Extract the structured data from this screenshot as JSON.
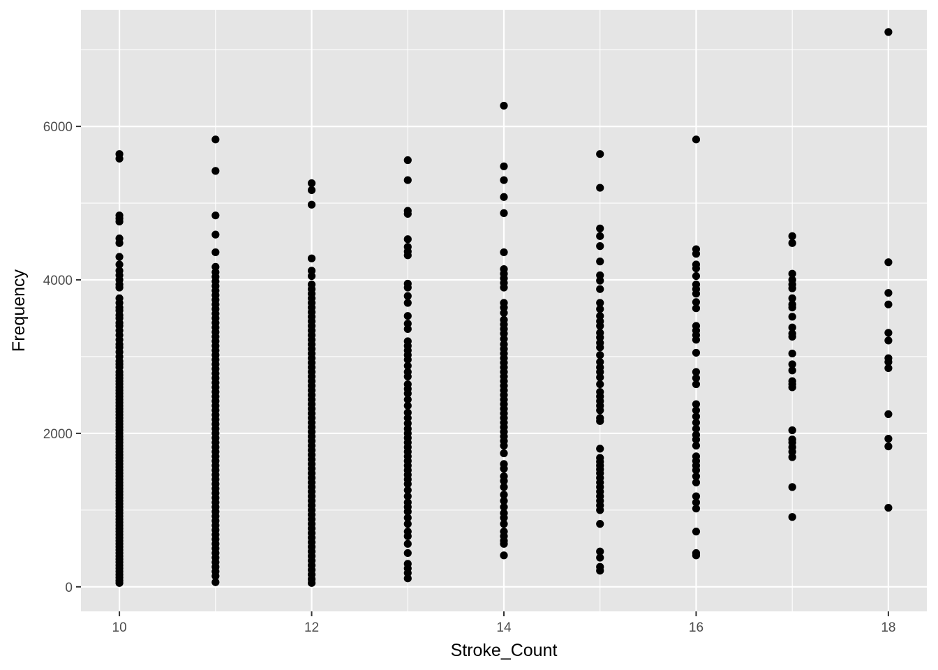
{
  "chart_data": {
    "type": "scatter",
    "xlabel": "Stroke_Count",
    "ylabel": "Frequency",
    "xlim": [
      9.6,
      18.4
    ],
    "ylim": [
      -320,
      7520
    ],
    "x_ticks": [
      10,
      12,
      14,
      16,
      18
    ],
    "x_tick_labels": [
      "10",
      "12",
      "14",
      "16",
      "18"
    ],
    "y_ticks": [
      0,
      2000,
      4000,
      6000
    ],
    "y_tick_labels": [
      "0",
      "2000",
      "4000",
      "6000"
    ],
    "grid": true,
    "legend": "none",
    "colors": {
      "panel": "#e5e5e5",
      "grid_major": "#ffffff",
      "point": "#000000"
    },
    "series": [
      {
        "x": 10,
        "y": [
          5640,
          5580,
          4840,
          4800,
          4760,
          4540,
          4480,
          4300,
          4200,
          4120,
          4060,
          4000,
          3940,
          3900,
          3760,
          3700,
          3640,
          3600,
          3540,
          3500,
          3440,
          3400,
          3340,
          3280,
          3220,
          3160,
          3120,
          3060,
          3000,
          2940,
          2900,
          2860,
          2800,
          2760,
          2720,
          2680,
          2640,
          2600,
          2560,
          2520,
          2480,
          2440,
          2400,
          2360,
          2320,
          2280,
          2240,
          2200,
          2160,
          2120,
          2080,
          2040,
          2000,
          1960,
          1920,
          1880,
          1840,
          1800,
          1760,
          1720,
          1680,
          1640,
          1600,
          1560,
          1520,
          1480,
          1440,
          1400,
          1360,
          1320,
          1280,
          1240,
          1200,
          1160,
          1120,
          1080,
          1040,
          1000,
          960,
          920,
          880,
          840,
          800,
          760,
          720,
          680,
          640,
          600,
          560,
          520,
          480,
          440,
          400,
          360,
          320,
          280,
          240,
          200,
          160,
          120,
          80,
          50
        ]
      },
      {
        "x": 11,
        "y": [
          5830,
          5420,
          4840,
          4590,
          4360,
          4170,
          4100,
          4040,
          3980,
          3920,
          3860,
          3800,
          3740,
          3680,
          3620,
          3560,
          3500,
          3440,
          3380,
          3320,
          3260,
          3200,
          3140,
          3080,
          3020,
          2960,
          2900,
          2840,
          2780,
          2720,
          2660,
          2600,
          2540,
          2480,
          2420,
          2360,
          2300,
          2240,
          2180,
          2120,
          2060,
          2000,
          1940,
          1880,
          1820,
          1760,
          1700,
          1640,
          1580,
          1520,
          1460,
          1400,
          1340,
          1280,
          1220,
          1160,
          1100,
          1040,
          980,
          920,
          860,
          800,
          740,
          680,
          620,
          560,
          500,
          440,
          380,
          320,
          260,
          200,
          140,
          60
        ]
      },
      {
        "x": 12,
        "y": [
          5260,
          5170,
          4980,
          4280,
          4120,
          4050,
          3940,
          3880,
          3820,
          3760,
          3700,
          3640,
          3580,
          3520,
          3460,
          3400,
          3340,
          3280,
          3220,
          3160,
          3100,
          3040,
          2980,
          2920,
          2860,
          2800,
          2740,
          2680,
          2620,
          2560,
          2500,
          2440,
          2380,
          2320,
          2260,
          2200,
          2140,
          2080,
          2020,
          1960,
          1900,
          1840,
          1780,
          1720,
          1660,
          1600,
          1540,
          1480,
          1420,
          1360,
          1300,
          1240,
          1180,
          1120,
          1060,
          1000,
          940,
          880,
          820,
          760,
          700,
          640,
          580,
          520,
          460,
          400,
          340,
          280,
          220,
          160,
          100,
          50
        ]
      },
      {
        "x": 13,
        "y": [
          5560,
          5300,
          4900,
          4860,
          4530,
          4430,
          4370,
          4320,
          3950,
          3900,
          3790,
          3700,
          3530,
          3430,
          3360,
          3200,
          3140,
          3080,
          3020,
          2960,
          2880,
          2800,
          2740,
          2640,
          2580,
          2520,
          2440,
          2360,
          2270,
          2200,
          2130,
          2060,
          2000,
          1940,
          1880,
          1820,
          1760,
          1700,
          1640,
          1580,
          1520,
          1460,
          1400,
          1340,
          1260,
          1180,
          1100,
          1040,
          980,
          900,
          820,
          720,
          660,
          560,
          440,
          300,
          240,
          180,
          110
        ]
      },
      {
        "x": 14,
        "y": [
          6270,
          5480,
          5300,
          5080,
          4870,
          4360,
          4140,
          4080,
          4020,
          3960,
          3900,
          3700,
          3640,
          3570,
          3480,
          3420,
          3360,
          3300,
          3230,
          3160,
          3100,
          3040,
          2980,
          2920,
          2860,
          2800,
          2740,
          2680,
          2620,
          2560,
          2500,
          2440,
          2380,
          2320,
          2260,
          2200,
          2140,
          2080,
          2020,
          1960,
          1900,
          1840,
          1740,
          1600,
          1540,
          1440,
          1380,
          1300,
          1200,
          1120,
          1040,
          960,
          900,
          820,
          720,
          660,
          600,
          560,
          410
        ]
      },
      {
        "x": 15,
        "y": [
          5640,
          5200,
          4670,
          4570,
          4440,
          4240,
          4060,
          3990,
          3880,
          3700,
          3620,
          3530,
          3460,
          3400,
          3310,
          3250,
          3180,
          3120,
          3020,
          2930,
          2860,
          2800,
          2730,
          2640,
          2540,
          2480,
          2420,
          2360,
          2300,
          2200,
          2160,
          1800,
          1680,
          1630,
          1580,
          1530,
          1480,
          1420,
          1360,
          1300,
          1240,
          1180,
          1120,
          1060,
          1000,
          820,
          460,
          380,
          260,
          210
        ]
      },
      {
        "x": 16,
        "y": [
          5830,
          4400,
          4340,
          4200,
          4150,
          4050,
          3940,
          3880,
          3820,
          3710,
          3630,
          3400,
          3340,
          3280,
          3220,
          3050,
          2800,
          2720,
          2640,
          2380,
          2300,
          2220,
          2140,
          2060,
          1980,
          1920,
          1840,
          1700,
          1640,
          1580,
          1520,
          1440,
          1360,
          1180,
          1100,
          1020,
          720,
          440,
          410
        ]
      },
      {
        "x": 17,
        "y": [
          4570,
          4480,
          4080,
          4000,
          3940,
          3890,
          3760,
          3680,
          3640,
          3520,
          3380,
          3300,
          3260,
          3040,
          2900,
          2820,
          2680,
          2640,
          2600,
          2040,
          1920,
          1880,
          1820,
          1760,
          1690,
          1300,
          910
        ]
      },
      {
        "x": 18,
        "y": [
          7230,
          4230,
          3830,
          3680,
          3310,
          3210,
          2980,
          2930,
          2850,
          2250,
          1930,
          1830,
          1030
        ]
      }
    ]
  }
}
